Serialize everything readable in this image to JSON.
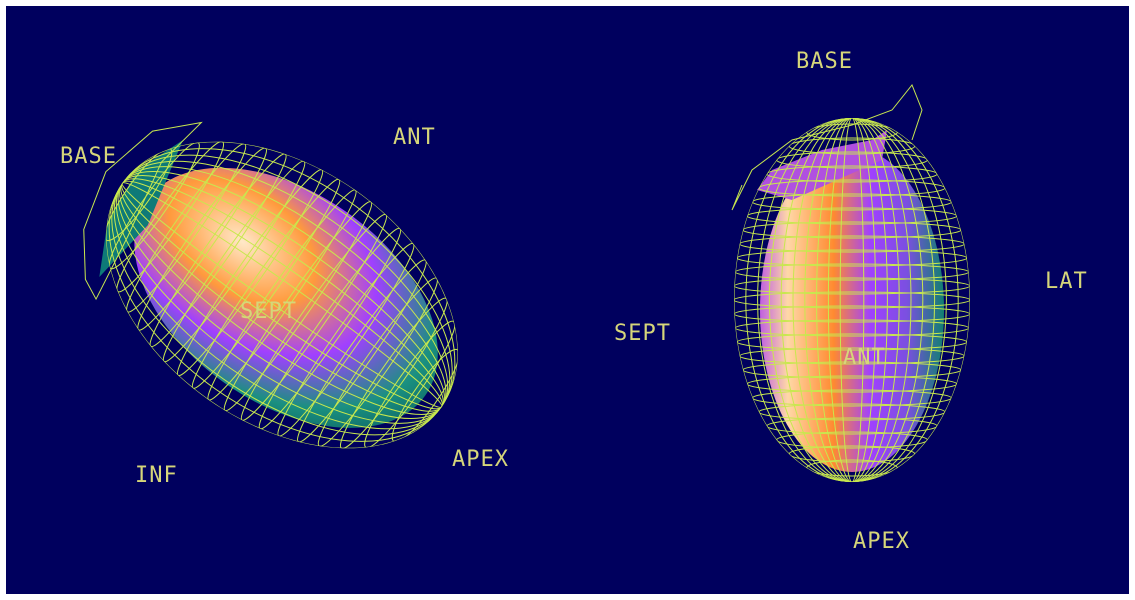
{
  "views": [
    {
      "labels": [
        "BASE",
        "ANT",
        "SEPT",
        "INF",
        "APEX"
      ]
    },
    {
      "labels": [
        "BASE",
        "SEPT",
        "LAT",
        "ANT",
        "APEX"
      ]
    }
  ]
}
